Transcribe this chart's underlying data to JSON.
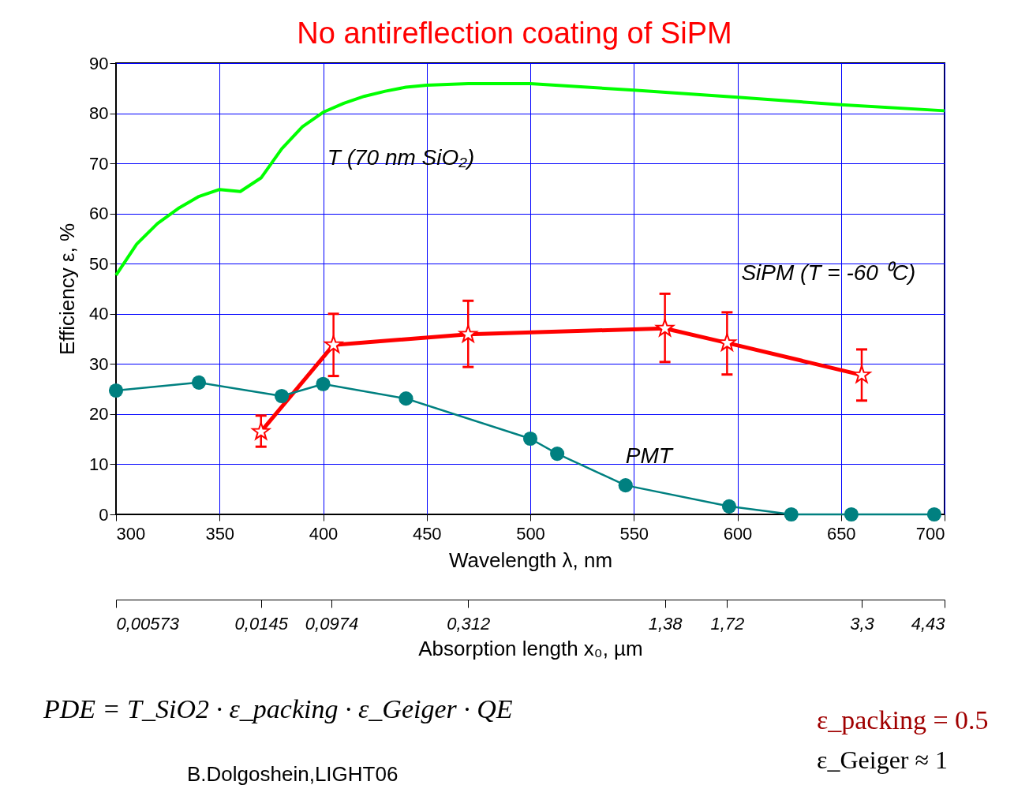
{
  "chart_data": {
    "type": "line",
    "title": "No antireflection coating of SiPM",
    "xlabel": "Wavelength λ, nm",
    "ylabel": "Efficiency ε, %",
    "x2label": "Absorption length x₀, µm",
    "xlim": [
      300,
      700
    ],
    "xticks": [
      300,
      350,
      400,
      450,
      500,
      550,
      600,
      650,
      700
    ],
    "ylim": [
      0,
      90
    ],
    "yticks": [
      0,
      10,
      20,
      30,
      40,
      50,
      60,
      70,
      80,
      90
    ],
    "grid": true,
    "line_style": "solid",
    "series": [
      {
        "name": "T (70 nm SiO₂)",
        "color": "#00ff00",
        "marker": "none",
        "x": [
          300,
          310,
          320,
          330,
          340,
          350,
          360,
          370,
          380,
          390,
          400,
          410,
          420,
          430,
          440,
          450,
          470,
          500,
          550,
          600,
          650,
          700
        ],
        "values": [
          47.7,
          53.9,
          58,
          61,
          63.4,
          64.8,
          64.4,
          67.1,
          72.9,
          77.3,
          80.2,
          82,
          83.4,
          84.4,
          85.2,
          85.6,
          85.9,
          85.9,
          84.6,
          83.2,
          81.7,
          80.5
        ]
      },
      {
        "name": "SiPM (T = -60 ⁰C)",
        "color": "#ff0000",
        "marker": "star",
        "x": [
          370,
          405,
          470,
          565,
          595,
          660
        ],
        "values": [
          16.5,
          33.8,
          35.9,
          37.1,
          34.2,
          27.8
        ],
        "errors": [
          [
            13.5,
            19.7
          ],
          [
            27.6,
            40.0
          ],
          [
            29.4,
            42.6
          ],
          [
            30.4,
            44.0
          ],
          [
            27.9,
            40.3
          ],
          [
            22.7,
            32.9
          ]
        ]
      },
      {
        "name": "PMT",
        "color": "#008080",
        "marker": "circle",
        "x": [
          300,
          340,
          380,
          400,
          440,
          500,
          513,
          546,
          596,
          626,
          655,
          695
        ],
        "values": [
          24.7,
          26.3,
          23.6,
          26.0,
          23.1,
          15.1,
          12.1,
          5.8,
          1.6,
          0,
          0,
          0
        ]
      }
    ],
    "annotations": [
      "0,00573",
      {
        "text": "0,0145",
        "x": 370
      },
      {
        "text": "0,0974",
        "x": 404
      },
      {
        "text": "0,312",
        "x": 470
      },
      {
        "text": "1,38",
        "x": 565
      },
      {
        "text": "1,72",
        "x": 595
      },
      {
        "text": "3,3",
        "x": 660
      },
      "4,43",
      "PDE = T_SiO2 · ε_packing · ε_Geiger · QE",
      "B.Dolgoshein,LIGHT06",
      "ε_packing = 0.5",
      "ε_Geiger ≈ 1"
    ]
  }
}
